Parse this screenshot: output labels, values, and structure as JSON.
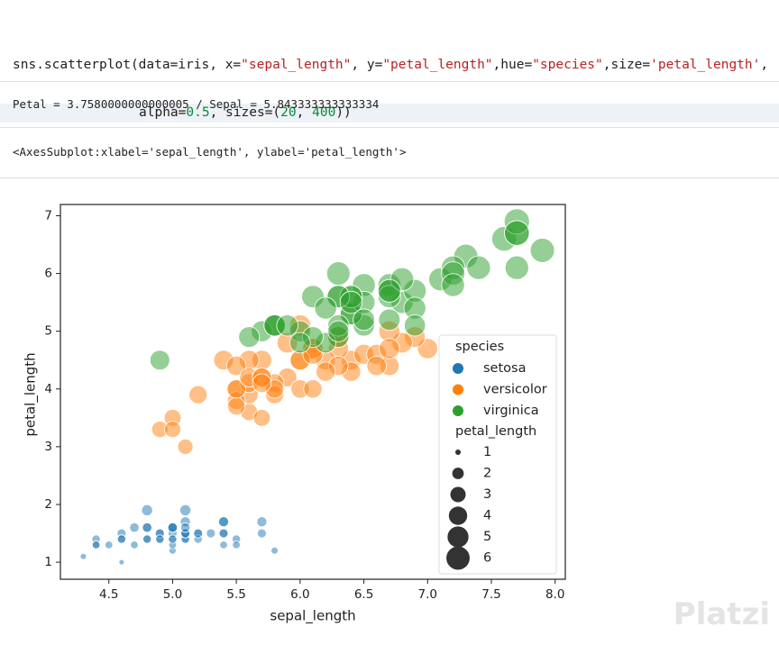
{
  "code": {
    "lines": [
      [
        "sns.scatterplot(data=iris, x=",
        "\"sepal_length\"",
        ", y=",
        "\"petal_length\"",
        ",hue=",
        "\"species\"",
        ",size=",
        "'petal_length'",
        ","
      ],
      [
        "alpha=",
        "0.5",
        ", sizes=(",
        "20",
        ", ",
        "400",
        "))"
      ]
    ]
  },
  "outputs": [
    "Petal = 3.7580000000000005 / Sepal = 5.843333333333334",
    "<AxesSubplot:xlabel='sepal_length', ylabel='petal_length'>"
  ],
  "chart_data": {
    "type": "scatter",
    "x_label": "sepal_length",
    "y_label": "petal_length",
    "xlim": [
      4.12,
      8.08
    ],
    "ylim": [
      0.705,
      7.195
    ],
    "xticks": [
      4.5,
      {
        "value": 5,
        "label": "5.0"
      },
      5.5,
      {
        "value": 6,
        "label": "6.0"
      },
      6.5,
      {
        "value": 7,
        "label": "7.0"
      },
      7.5,
      {
        "value": 8,
        "label": "8.0"
      }
    ],
    "yticks": [
      1,
      2,
      3,
      4,
      5,
      6,
      7
    ],
    "alpha": 0.5,
    "hue_title": "species",
    "size_title": "petal_length",
    "size_legend": [
      1,
      2,
      3,
      4,
      5,
      6
    ],
    "series": [
      {
        "name": "setosa",
        "color": "#1f77b4",
        "x": [
          5.1,
          4.9,
          4.7,
          4.6,
          5.0,
          5.4,
          4.6,
          5.0,
          4.4,
          4.9,
          5.4,
          4.8,
          4.8,
          4.3,
          5.8,
          5.7,
          5.4,
          5.1,
          5.7,
          5.1,
          5.4,
          5.1,
          4.6,
          5.1,
          4.8,
          5.0,
          5.0,
          5.2,
          5.2,
          4.7,
          4.8,
          5.4,
          5.2,
          5.5,
          4.9,
          5.0,
          5.5,
          4.9,
          4.4,
          5.1,
          5.0,
          4.5,
          4.4,
          5.0,
          5.1,
          4.8,
          5.1,
          4.6,
          5.3,
          5.0
        ],
        "values": [
          1.4,
          1.4,
          1.3,
          1.5,
          1.4,
          1.7,
          1.4,
          1.5,
          1.4,
          1.5,
          1.5,
          1.6,
          1.4,
          1.1,
          1.2,
          1.5,
          1.3,
          1.4,
          1.7,
          1.5,
          1.7,
          1.5,
          1.0,
          1.7,
          1.9,
          1.6,
          1.6,
          1.5,
          1.4,
          1.6,
          1.6,
          1.5,
          1.5,
          1.4,
          1.5,
          1.2,
          1.3,
          1.4,
          1.3,
          1.5,
          1.3,
          1.3,
          1.3,
          1.6,
          1.9,
          1.4,
          1.6,
          1.4,
          1.5,
          1.4
        ]
      },
      {
        "name": "versicolor",
        "color": "#ff7f0e",
        "x": [
          7.0,
          6.4,
          6.9,
          5.5,
          6.5,
          5.7,
          6.3,
          4.9,
          6.6,
          5.2,
          5.0,
          5.9,
          6.0,
          6.1,
          5.6,
          6.7,
          5.6,
          5.8,
          6.2,
          5.6,
          5.9,
          6.1,
          6.3,
          6.1,
          6.4,
          6.6,
          6.8,
          6.7,
          6.0,
          5.7,
          5.5,
          5.5,
          5.8,
          6.0,
          5.4,
          6.0,
          6.7,
          6.3,
          5.6,
          5.5,
          5.5,
          6.1,
          5.8,
          5.0,
          5.6,
          5.7,
          5.7,
          6.2,
          5.1,
          5.7
        ],
        "values": [
          4.7,
          4.5,
          4.9,
          4.0,
          4.6,
          4.5,
          4.7,
          3.3,
          4.6,
          3.9,
          3.5,
          4.2,
          4.0,
          4.7,
          3.6,
          4.4,
          4.5,
          4.1,
          4.5,
          3.9,
          4.8,
          4.0,
          4.9,
          4.7,
          4.3,
          4.4,
          4.8,
          5.0,
          4.5,
          3.5,
          3.8,
          3.7,
          3.9,
          5.1,
          4.5,
          4.5,
          4.7,
          4.4,
          4.1,
          4.0,
          4.4,
          4.6,
          4.0,
          3.3,
          4.2,
          4.2,
          4.2,
          4.3,
          3.0,
          4.1
        ]
      },
      {
        "name": "virginica",
        "color": "#2ca02c",
        "x": [
          6.3,
          5.8,
          7.1,
          6.3,
          6.5,
          7.6,
          4.9,
          7.3,
          6.7,
          7.2,
          6.5,
          6.4,
          6.8,
          5.7,
          5.8,
          6.4,
          6.5,
          7.7,
          7.7,
          6.0,
          6.9,
          5.6,
          7.7,
          6.3,
          6.7,
          7.2,
          6.2,
          6.1,
          6.4,
          7.2,
          7.4,
          7.9,
          6.4,
          6.3,
          6.1,
          7.7,
          6.3,
          6.4,
          6.0,
          6.9,
          6.7,
          6.9,
          5.8,
          6.8,
          6.7,
          6.7,
          6.3,
          6.5,
          6.2,
          5.9
        ],
        "values": [
          6.0,
          5.1,
          5.9,
          5.6,
          5.8,
          6.6,
          4.5,
          6.3,
          5.8,
          6.1,
          5.1,
          5.3,
          5.5,
          5.0,
          5.1,
          5.3,
          5.5,
          6.7,
          6.9,
          5.0,
          5.7,
          4.9,
          6.7,
          4.9,
          5.7,
          6.0,
          4.8,
          4.9,
          5.6,
          5.8,
          6.1,
          6.4,
          5.6,
          5.1,
          5.6,
          6.1,
          5.6,
          5.5,
          4.8,
          5.4,
          5.6,
          5.1,
          5.1,
          5.9,
          5.7,
          5.2,
          5.0,
          5.2,
          5.4,
          5.1
        ]
      }
    ]
  },
  "watermark": "Platzi"
}
